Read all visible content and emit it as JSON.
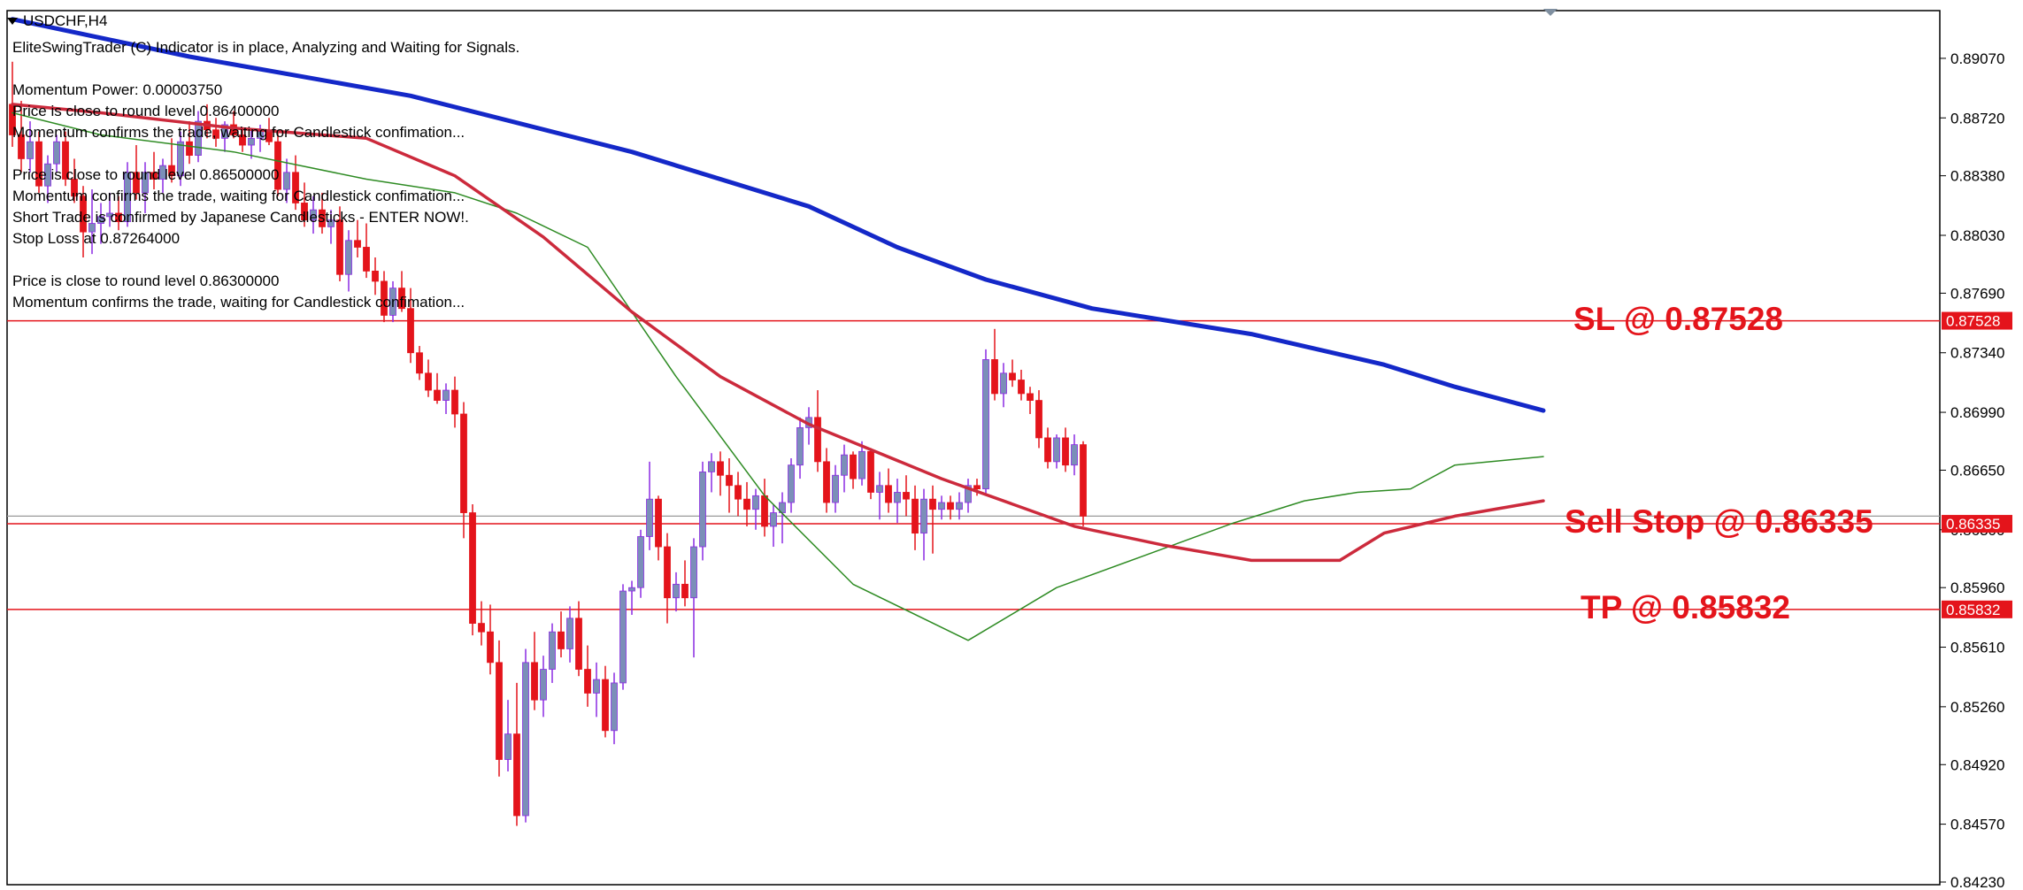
{
  "header": {
    "symbol": "USDCHF,H4"
  },
  "info_lines": [
    "EliteSwingTrader (C) Indicator is in place, Analyzing and Waiting for Signals.",
    "",
    "Momentum Power: 0.00003750",
    "Price is close to round level 0.86400000",
    "Momentum confirms the trade, waiting for Candlestick confimation...",
    "",
    "Price is close to round level 0.86500000",
    "Momentum confirms the trade, waiting for Candlestick confimation...",
    "Short Trade is confirmed by Japanese Candlesticks - ENTER NOW!.",
    "Stop Loss at 0.87264000",
    "",
    "Price is close to round level 0.86300000",
    "Momentum confirms the trade, waiting for Candlestick confimation..."
  ],
  "annotations": [
    {
      "text": "SL @ 0.87528",
      "price": 0.87528
    },
    {
      "text": "Sell Stop @ 0.86335",
      "price": 0.86335
    },
    {
      "text": "TP @ 0.85832",
      "price": 0.85832
    }
  ],
  "colors": {
    "bull_body": "#7b8fb8",
    "bull_wick": "#8a2be2",
    "bear": "#e4141b",
    "ma_slow": "#1428c8",
    "ma_mid": "#cc2a3c",
    "ma_fast": "#2e8b23",
    "level_line": "#e4141b",
    "current_price_line": "#999999",
    "axis": "#000000"
  },
  "chart_data": {
    "type": "candlestick",
    "symbol": "USDCHF",
    "timeframe": "H4",
    "ylim": [
      0.8423,
      0.8921
    ],
    "y_ticks": [
      "0.89070",
      "0.88720",
      "0.88380",
      "0.88030",
      "0.87690",
      "0.87340",
      "0.86990",
      "0.86650",
      "0.86300",
      "0.85960",
      "0.85610",
      "0.85260",
      "0.84920",
      "0.84570",
      "0.84230"
    ],
    "levels": [
      {
        "price": 0.87528,
        "label": "0.87528"
      },
      {
        "price": 0.86335,
        "label": "0.86335"
      },
      {
        "price": 0.85832,
        "label": "0.85832"
      }
    ],
    "current_price": 0.8638,
    "candles": [
      [
        0.888,
        0.8905,
        0.8855,
        0.8862
      ],
      [
        0.8862,
        0.8882,
        0.884,
        0.8848
      ],
      [
        0.8848,
        0.887,
        0.884,
        0.8858
      ],
      [
        0.8858,
        0.8864,
        0.8828,
        0.8832
      ],
      [
        0.8832,
        0.885,
        0.8822,
        0.8845
      ],
      [
        0.8845,
        0.8862,
        0.884,
        0.8858
      ],
      [
        0.8858,
        0.8864,
        0.8832,
        0.8836
      ],
      [
        0.8836,
        0.8848,
        0.8822,
        0.8826
      ],
      [
        0.8826,
        0.8832,
        0.879,
        0.8805
      ],
      [
        0.8805,
        0.883,
        0.8792,
        0.881
      ],
      [
        0.881,
        0.8822,
        0.8798,
        0.8814
      ],
      [
        0.8814,
        0.8828,
        0.8808,
        0.8816
      ],
      [
        0.8816,
        0.8826,
        0.8806,
        0.8811
      ],
      [
        0.8811,
        0.8846,
        0.8808,
        0.884
      ],
      [
        0.884,
        0.8856,
        0.8824,
        0.8828
      ],
      [
        0.8828,
        0.8846,
        0.8816,
        0.884
      ],
      [
        0.884,
        0.8852,
        0.883,
        0.8836
      ],
      [
        0.8836,
        0.8848,
        0.8828,
        0.8844
      ],
      [
        0.8844,
        0.886,
        0.8834,
        0.8838
      ],
      [
        0.8838,
        0.8864,
        0.8832,
        0.8858
      ],
      [
        0.8858,
        0.887,
        0.8845,
        0.885
      ],
      [
        0.885,
        0.8876,
        0.8846,
        0.887
      ],
      [
        0.887,
        0.888,
        0.886,
        0.8865
      ],
      [
        0.8865,
        0.8872,
        0.8855,
        0.886
      ],
      [
        0.886,
        0.887,
        0.8852,
        0.8868
      ],
      [
        0.8868,
        0.8876,
        0.886,
        0.8862
      ],
      [
        0.8862,
        0.8866,
        0.8852,
        0.8856
      ],
      [
        0.8856,
        0.8865,
        0.8848,
        0.886
      ],
      [
        0.886,
        0.8868,
        0.8852,
        0.8864
      ],
      [
        0.8864,
        0.8872,
        0.8856,
        0.8858
      ],
      [
        0.8858,
        0.8864,
        0.8826,
        0.883
      ],
      [
        0.883,
        0.8848,
        0.8822,
        0.884
      ],
      [
        0.884,
        0.885,
        0.8818,
        0.8822
      ],
      [
        0.8822,
        0.8834,
        0.8808,
        0.8812
      ],
      [
        0.8812,
        0.8826,
        0.8804,
        0.8818
      ],
      [
        0.8818,
        0.8828,
        0.8804,
        0.8808
      ],
      [
        0.8808,
        0.8818,
        0.8798,
        0.8812
      ],
      [
        0.8812,
        0.882,
        0.8776,
        0.878
      ],
      [
        0.878,
        0.8806,
        0.877,
        0.88
      ],
      [
        0.88,
        0.8812,
        0.879,
        0.8796
      ],
      [
        0.8796,
        0.881,
        0.8778,
        0.8782
      ],
      [
        0.8782,
        0.879,
        0.8768,
        0.8776
      ],
      [
        0.8776,
        0.8782,
        0.8752,
        0.8756
      ],
      [
        0.8756,
        0.8776,
        0.8752,
        0.8772
      ],
      [
        0.8772,
        0.8782,
        0.8758,
        0.876
      ],
      [
        0.876,
        0.8772,
        0.8728,
        0.8734
      ],
      [
        0.8734,
        0.8738,
        0.8718,
        0.8722
      ],
      [
        0.8722,
        0.873,
        0.8708,
        0.8712
      ],
      [
        0.8712,
        0.8722,
        0.8704,
        0.8706
      ],
      [
        0.8706,
        0.8716,
        0.8698,
        0.8712
      ],
      [
        0.8712,
        0.872,
        0.869,
        0.8698
      ],
      [
        0.8698,
        0.8705,
        0.8625,
        0.864
      ],
      [
        0.864,
        0.8645,
        0.8568,
        0.8575
      ],
      [
        0.8575,
        0.8588,
        0.8562,
        0.857
      ],
      [
        0.857,
        0.8586,
        0.8545,
        0.8552
      ],
      [
        0.8552,
        0.8565,
        0.8485,
        0.8495
      ],
      [
        0.8495,
        0.853,
        0.8488,
        0.851
      ],
      [
        0.851,
        0.854,
        0.8456,
        0.8462
      ],
      [
        0.8462,
        0.856,
        0.8458,
        0.8552
      ],
      [
        0.8552,
        0.857,
        0.8524,
        0.853
      ],
      [
        0.853,
        0.8556,
        0.852,
        0.8548
      ],
      [
        0.8548,
        0.8575,
        0.854,
        0.857
      ],
      [
        0.857,
        0.8582,
        0.8555,
        0.856
      ],
      [
        0.856,
        0.8585,
        0.8552,
        0.8578
      ],
      [
        0.8578,
        0.8588,
        0.8544,
        0.8548
      ],
      [
        0.8548,
        0.8562,
        0.8526,
        0.8534
      ],
      [
        0.8534,
        0.8552,
        0.852,
        0.8542
      ],
      [
        0.8542,
        0.855,
        0.8508,
        0.8512
      ],
      [
        0.8512,
        0.8546,
        0.8504,
        0.854
      ],
      [
        0.854,
        0.8598,
        0.8536,
        0.8594
      ],
      [
        0.8594,
        0.86,
        0.858,
        0.8596
      ],
      [
        0.8596,
        0.863,
        0.859,
        0.8626
      ],
      [
        0.8626,
        0.867,
        0.8618,
        0.8648
      ],
      [
        0.8648,
        0.865,
        0.8612,
        0.862
      ],
      [
        0.862,
        0.8628,
        0.8575,
        0.859
      ],
      [
        0.859,
        0.8605,
        0.8582,
        0.8598
      ],
      [
        0.8598,
        0.8612,
        0.8585,
        0.859
      ],
      [
        0.859,
        0.8625,
        0.8555,
        0.862
      ],
      [
        0.862,
        0.867,
        0.8612,
        0.8664
      ],
      [
        0.8664,
        0.8675,
        0.8652,
        0.867
      ],
      [
        0.867,
        0.8676,
        0.865,
        0.8662
      ],
      [
        0.8662,
        0.8672,
        0.864,
        0.8656
      ],
      [
        0.8656,
        0.8664,
        0.8638,
        0.8648
      ],
      [
        0.8648,
        0.8658,
        0.8632,
        0.8642
      ],
      [
        0.8642,
        0.8654,
        0.863,
        0.865
      ],
      [
        0.865,
        0.866,
        0.8626,
        0.8632
      ],
      [
        0.8632,
        0.8645,
        0.862,
        0.864
      ],
      [
        0.864,
        0.8652,
        0.8622,
        0.8646
      ],
      [
        0.8646,
        0.8672,
        0.864,
        0.8668
      ],
      [
        0.8668,
        0.8696,
        0.866,
        0.869
      ],
      [
        0.869,
        0.8702,
        0.868,
        0.8696
      ],
      [
        0.8696,
        0.8712,
        0.8664,
        0.867
      ],
      [
        0.867,
        0.8678,
        0.864,
        0.8646
      ],
      [
        0.8646,
        0.8668,
        0.864,
        0.8662
      ],
      [
        0.8662,
        0.868,
        0.8652,
        0.8674
      ],
      [
        0.8674,
        0.8676,
        0.8654,
        0.866
      ],
      [
        0.866,
        0.8682,
        0.8656,
        0.8676
      ],
      [
        0.8676,
        0.8678,
        0.8648,
        0.8652
      ],
      [
        0.8652,
        0.8664,
        0.8636,
        0.8656
      ],
      [
        0.8656,
        0.8666,
        0.864,
        0.8646
      ],
      [
        0.8646,
        0.866,
        0.8634,
        0.8652
      ],
      [
        0.8652,
        0.8662,
        0.8638,
        0.8648
      ],
      [
        0.8648,
        0.8656,
        0.8618,
        0.8628
      ],
      [
        0.8628,
        0.8654,
        0.8612,
        0.8648
      ],
      [
        0.8648,
        0.8656,
        0.8616,
        0.8642
      ],
      [
        0.8642,
        0.865,
        0.8636,
        0.8646
      ],
      [
        0.8646,
        0.865,
        0.8636,
        0.8642
      ],
      [
        0.8642,
        0.8652,
        0.8636,
        0.8646
      ],
      [
        0.8646,
        0.866,
        0.864,
        0.8656
      ],
      [
        0.8656,
        0.866,
        0.865,
        0.8654
      ],
      [
        0.8654,
        0.8736,
        0.865,
        0.873
      ],
      [
        0.873,
        0.8748,
        0.8706,
        0.871
      ],
      [
        0.871,
        0.8728,
        0.8702,
        0.8722
      ],
      [
        0.8722,
        0.873,
        0.8714,
        0.8718
      ],
      [
        0.8718,
        0.8724,
        0.8706,
        0.871
      ],
      [
        0.871,
        0.8714,
        0.8698,
        0.8706
      ],
      [
        0.8706,
        0.8712,
        0.8678,
        0.8684
      ],
      [
        0.8684,
        0.869,
        0.8666,
        0.867
      ],
      [
        0.867,
        0.8686,
        0.8666,
        0.8684
      ],
      [
        0.8684,
        0.869,
        0.8664,
        0.8668
      ],
      [
        0.8668,
        0.8686,
        0.8662,
        0.868
      ],
      [
        0.868,
        0.8682,
        0.8632,
        0.8638
      ]
    ],
    "ma_slow": [
      [
        0,
        0.893
      ],
      [
        20,
        0.8908
      ],
      [
        45,
        0.8885
      ],
      [
        70,
        0.8852
      ],
      [
        90,
        0.882
      ],
      [
        100,
        0.8796
      ],
      [
        110,
        0.8777
      ],
      [
        122,
        0.876
      ],
      [
        140,
        0.8745
      ],
      [
        155,
        0.8727
      ],
      [
        163,
        0.8714
      ],
      [
        173,
        0.87
      ]
    ],
    "ma_mid": [
      [
        0,
        0.888
      ],
      [
        10,
        0.8875
      ],
      [
        25,
        0.8866
      ],
      [
        40,
        0.886
      ],
      [
        50,
        0.8838
      ],
      [
        60,
        0.8802
      ],
      [
        70,
        0.8758
      ],
      [
        80,
        0.872
      ],
      [
        90,
        0.8692
      ],
      [
        105,
        0.866
      ],
      [
        120,
        0.8632
      ],
      [
        130,
        0.8621
      ],
      [
        140,
        0.8612
      ],
      [
        150,
        0.8612
      ],
      [
        155,
        0.8628
      ],
      [
        163,
        0.8638
      ],
      [
        173,
        0.8647
      ]
    ],
    "ma_fast": [
      [
        0,
        0.8875
      ],
      [
        10,
        0.8862
      ],
      [
        25,
        0.8852
      ],
      [
        40,
        0.8836
      ],
      [
        50,
        0.8828
      ],
      [
        57,
        0.8816
      ],
      [
        65,
        0.8796
      ],
      [
        75,
        0.872
      ],
      [
        85,
        0.865
      ],
      [
        95,
        0.8598
      ],
      [
        108,
        0.8565
      ],
      [
        118,
        0.8596
      ],
      [
        128,
        0.8615
      ],
      [
        138,
        0.8634
      ],
      [
        146,
        0.8647
      ],
      [
        152,
        0.8652
      ],
      [
        158,
        0.8654
      ],
      [
        163,
        0.8668
      ],
      [
        173,
        0.8673
      ]
    ]
  }
}
